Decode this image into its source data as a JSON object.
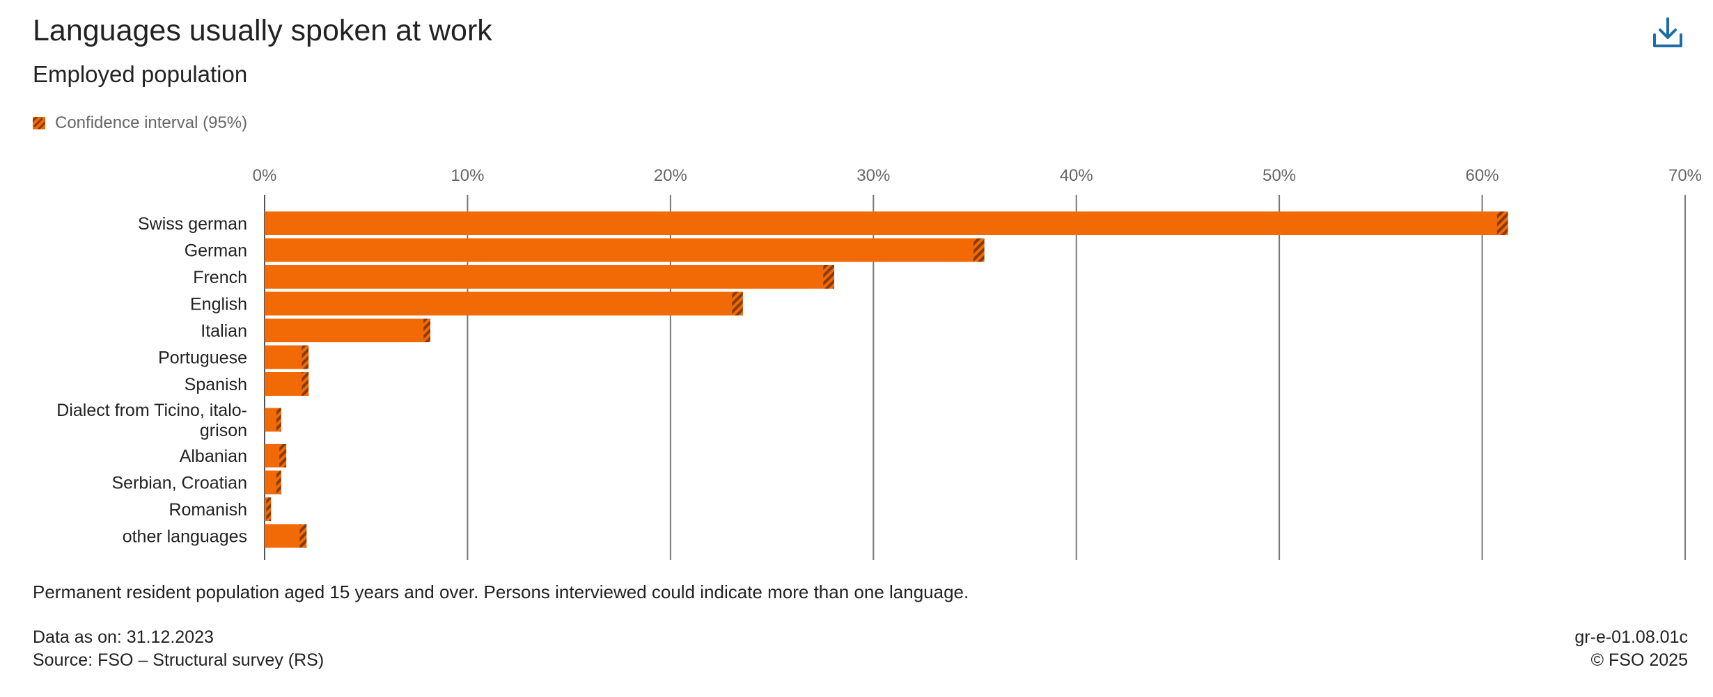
{
  "header": {
    "title": "Languages usually spoken at work",
    "subtitle": "Employed population",
    "download_icon": "download-icon"
  },
  "legend": {
    "label": "Confidence interval (95%)",
    "icon": "hatched-swatch-icon"
  },
  "colors": {
    "bar": "#f26a05",
    "interval": "#8a3a08",
    "grid": "#777777",
    "download": "#1b6fa8"
  },
  "chart_data": {
    "type": "bar",
    "orientation": "horizontal",
    "title": "Languages usually spoken at work",
    "subtitle": "Employed population",
    "xlabel": "",
    "ylabel": "",
    "xlim": [
      0,
      70
    ],
    "x_ticks": [
      "0%",
      "10%",
      "20%",
      "30%",
      "40%",
      "50%",
      "60%",
      "70%"
    ],
    "grid": true,
    "legend_position": "top-left",
    "categories": [
      "Swiss german",
      "German",
      "French",
      "English",
      "Italian",
      "Portuguese",
      "Spanish",
      "Dialect from Ticino, italo-grison",
      "Albanian",
      "Serbian, Croatian",
      "Romanish",
      "other languages"
    ],
    "category_lines": [
      [
        "Swiss german"
      ],
      [
        "German"
      ],
      [
        "French"
      ],
      [
        "English"
      ],
      [
        "Italian"
      ],
      [
        "Portuguese"
      ],
      [
        "Spanish"
      ],
      [
        "Dialect from Ticino, italo-",
        "grison"
      ],
      [
        "Albanian"
      ],
      [
        "Serbian, Croatian"
      ],
      [
        "Romanish"
      ],
      [
        "other languages"
      ]
    ],
    "values": [
      61.0,
      35.2,
      27.8,
      23.3,
      8.0,
      2.0,
      2.0,
      0.7,
      0.9,
      0.7,
      0.2,
      1.9
    ],
    "ci_halfwidth": [
      0.2,
      0.2,
      0.2,
      0.2,
      0.1,
      0.1,
      0.1,
      0.05,
      0.1,
      0.05,
      0.05,
      0.1
    ],
    "series": [
      {
        "name": "Confidence interval (95%)",
        "values": [
          0.2,
          0.2,
          0.2,
          0.2,
          0.1,
          0.1,
          0.1,
          0.05,
          0.1,
          0.05,
          0.05,
          0.1
        ]
      }
    ]
  },
  "footer": {
    "note": "Permanent resident population aged 15 years and over. Persons interviewed could indicate more than one language.",
    "data_as_on": "Data as on: 31.12.2023",
    "source": "Source: FSO – Structural survey (RS)",
    "code": "gr-e-01.08.01c",
    "copyright": "© FSO 2025"
  }
}
